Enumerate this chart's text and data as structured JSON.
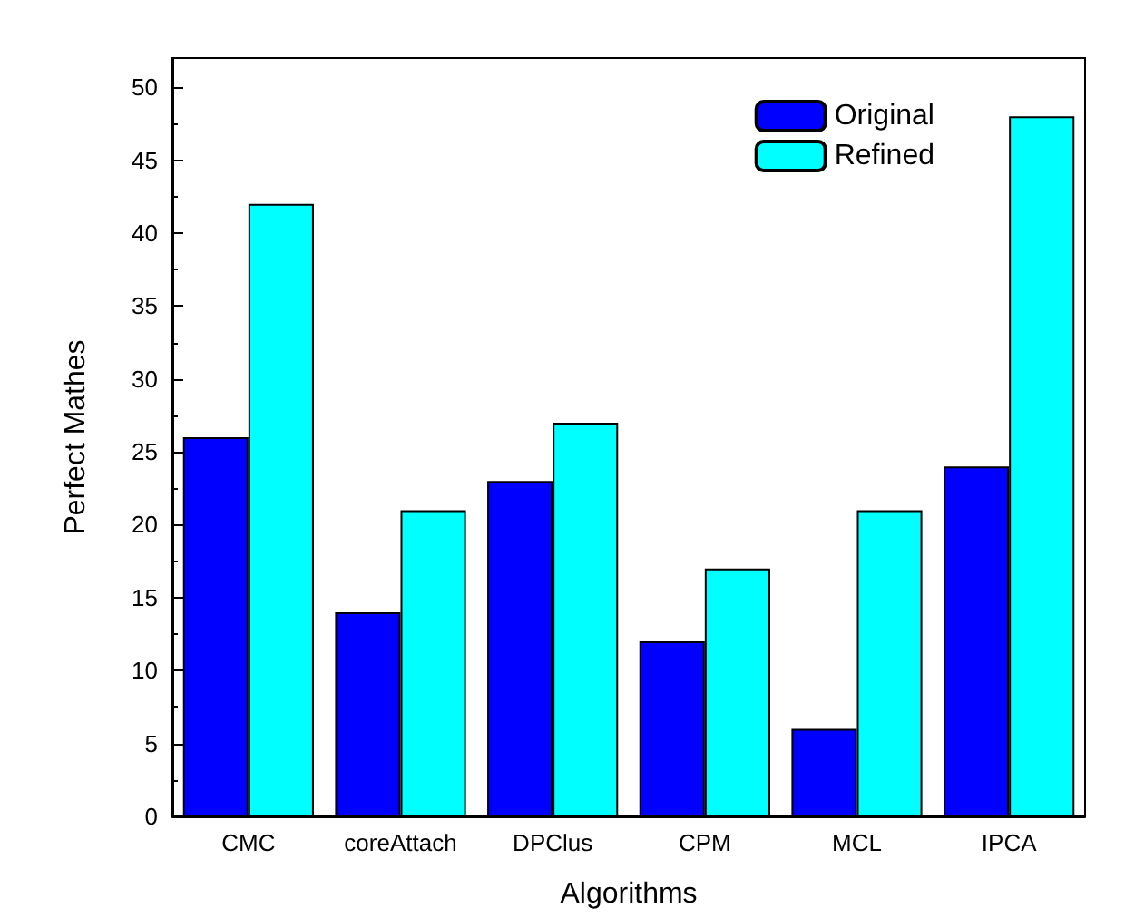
{
  "chart_data": {
    "type": "bar",
    "xlabel": "Algorithms",
    "ylabel": "Perfect Mathes",
    "categories": [
      "CMC",
      "coreAttach",
      "DPClus",
      "CPM",
      "MCL",
      "IPCA"
    ],
    "series": [
      {
        "name": "Original",
        "color": "#0000ff",
        "values": [
          26,
          14,
          23,
          12,
          6,
          24
        ]
      },
      {
        "name": "Refined",
        "color": "#00ffff",
        "values": [
          42,
          21,
          27,
          17,
          21,
          48
        ]
      }
    ],
    "ylim": [
      0,
      52
    ],
    "yticks": [
      0,
      5,
      10,
      15,
      20,
      25,
      30,
      35,
      40,
      45,
      50
    ],
    "legend": "top right"
  }
}
